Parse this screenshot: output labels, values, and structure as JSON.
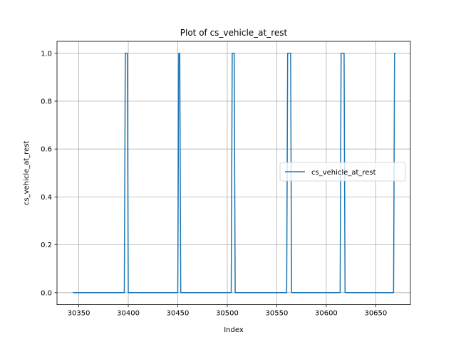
{
  "chart_data": {
    "type": "line",
    "title": "Plot of cs_vehicle_at_rest",
    "xlabel": "Index",
    "ylabel": "cs_vehicle_at_rest",
    "xlim": [
      30328,
      30685
    ],
    "ylim": [
      -0.05,
      1.05
    ],
    "xticks": [
      30350,
      30400,
      30450,
      30500,
      30550,
      30600,
      30650
    ],
    "yticks": [
      0.0,
      0.2,
      0.4,
      0.6,
      0.8,
      1.0
    ],
    "xtick_labels": [
      "30350",
      "30400",
      "30450",
      "30500",
      "30550",
      "30600",
      "30650"
    ],
    "ytick_labels": [
      "0.0",
      "0.2",
      "0.4",
      "0.6",
      "0.8",
      "1.0"
    ],
    "grid": true,
    "legend_position": "center-right",
    "series": [
      {
        "name": "cs_vehicle_at_rest",
        "color": "#1f77b4",
        "x": [
          30344,
          30396,
          30397,
          30399,
          30400,
          30450,
          30451,
          30452,
          30453,
          30504,
          30505,
          30507,
          30508,
          30560,
          30561,
          30564,
          30565,
          30614,
          30615,
          30618,
          30619,
          30668,
          30669,
          30670
        ],
        "y": [
          0,
          0,
          1,
          1,
          0,
          0,
          1,
          1,
          0,
          0,
          1,
          1,
          0,
          0,
          1,
          1,
          0,
          0,
          1,
          1,
          0,
          0,
          1,
          1
        ]
      }
    ]
  }
}
